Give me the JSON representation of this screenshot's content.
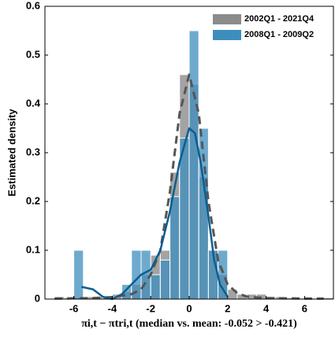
{
  "chart_data": {
    "type": "histogram",
    "ylabel": "Estimated density",
    "xlabel": "πi,t − πtri,t (median vs. mean: -0.052 > -0.421)",
    "xlim": [
      -7.5,
      7.5
    ],
    "ylim": [
      0,
      0.6
    ],
    "xticks": [
      -6,
      -4,
      -2,
      0,
      2,
      4,
      6
    ],
    "yticks": [
      0,
      0.1,
      0.2,
      0.3,
      0.4,
      0.5,
      0.6
    ],
    "legend": "upper right",
    "bins": [
      -7.5,
      -7,
      -6.5,
      -6,
      -5.5,
      -5,
      -4.5,
      -4,
      -3.5,
      -3,
      -2.5,
      -2,
      -1.5,
      -1,
      -0.5,
      0,
      0.5,
      1,
      1.5,
      2,
      2.5,
      3,
      3.5,
      4,
      4.5,
      5,
      5.5,
      6,
      6.5,
      7,
      7.5
    ],
    "series": [
      {
        "name": "2002Q1 - 2021Q4",
        "color": "#8c8c8c",
        "values": [
          0,
          0.005,
          0.003,
          0.003,
          0.005,
          0.005,
          0.005,
          0.01,
          0.015,
          0.03,
          0.05,
          0.09,
          0.1,
          0.26,
          0.46,
          0.44,
          0.25,
          0.1,
          0.05,
          0.02,
          0.01,
          0.01,
          0.01,
          0.005,
          0.005,
          0.003,
          0.002,
          0.002,
          0.002,
          0.003
        ]
      },
      {
        "name": "2008Q1 - 2009Q2",
        "color": "#3d8dbd",
        "values": [
          0,
          0,
          0,
          0.1,
          0,
          0,
          0,
          0,
          0.03,
          0.1,
          0.1,
          0.05,
          0.08,
          0.21,
          0.33,
          0.55,
          0.35,
          0.1,
          0.1,
          0,
          0,
          0,
          0,
          0,
          0,
          0,
          0,
          0,
          0,
          0
        ]
      }
    ],
    "lines": [
      {
        "color": "#555555",
        "dashed": true,
        "x": [
          -7,
          -5,
          -4,
          -3,
          -2.5,
          -2,
          -1.5,
          -1,
          -0.5,
          0,
          0.5,
          1,
          1.5,
          2,
          2.5,
          3,
          4,
          6,
          7
        ],
        "values": [
          0.001,
          0.002,
          0.004,
          0.01,
          0.02,
          0.05,
          0.1,
          0.22,
          0.38,
          0.46,
          0.38,
          0.2,
          0.08,
          0.03,
          0.012,
          0.005,
          0.002,
          0.001,
          0.001
        ]
      },
      {
        "color": "#0b5e91",
        "dashed": false,
        "x": [
          -5.6,
          -5,
          -4.5,
          -4,
          -3.5,
          -3,
          -2.5,
          -2,
          -1.5,
          -1,
          -0.5,
          0,
          0.3,
          0.6,
          1,
          1.3,
          1.6,
          2
        ],
        "values": [
          0.025,
          0.02,
          0.005,
          0,
          0.01,
          0.03,
          0.05,
          0.06,
          0.1,
          0.18,
          0.28,
          0.35,
          0.34,
          0.28,
          0.17,
          0.08,
          0.03,
          0.005
        ]
      }
    ]
  }
}
